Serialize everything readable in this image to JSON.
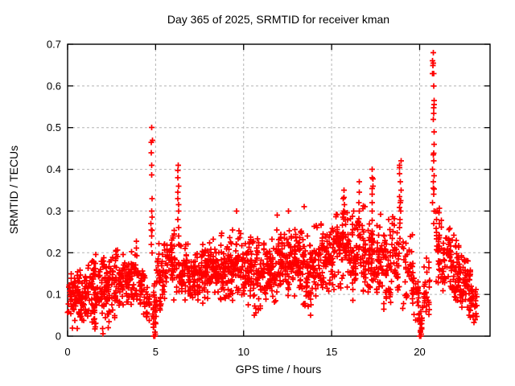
{
  "chart_data": {
    "type": "scatter",
    "title": "Day 365 of 2025, SRMTID for receiver kman",
    "xlabel": "GPS time / hours",
    "ylabel": "SRMTID / TECUs",
    "xlim": [
      0,
      24
    ],
    "ylim": [
      0,
      0.7
    ],
    "xticks": [
      0,
      5,
      10,
      15,
      20
    ],
    "xtick_labels": [
      "0",
      "5",
      "10",
      "15",
      "20"
    ],
    "yticks": [
      0,
      0.1,
      0.2,
      0.3,
      0.4,
      0.5,
      0.6,
      0.7
    ],
    "ytick_labels": [
      "0",
      "0.1",
      "0.2",
      "0.3",
      "0.4",
      "0.5",
      "0.6",
      "0.7"
    ],
    "grid": true,
    "legend": "none",
    "marker": {
      "shape": "plus",
      "color": "#ff0000",
      "size": 7,
      "stroke_width": 1.7
    },
    "colors": {
      "background": "#ffffff",
      "axis": "#000000",
      "grid": "#b3b3b3",
      "text": "#000000",
      "series": "#ff0000"
    },
    "series_name": "SRMTID",
    "bands_comment": "dense scatter approximated as bands: [x_start_hr, x_end_hr, n_points, mean_TECU, half_spread_TECU]",
    "bands": [
      [
        0.0,
        0.5,
        42,
        0.095,
        0.055
      ],
      [
        0.5,
        1.0,
        42,
        0.09,
        0.055
      ],
      [
        1.0,
        1.5,
        42,
        0.1,
        0.06
      ],
      [
        1.5,
        2.0,
        42,
        0.1,
        0.065
      ],
      [
        2.0,
        2.5,
        42,
        0.115,
        0.06
      ],
      [
        2.5,
        3.0,
        42,
        0.125,
        0.06
      ],
      [
        3.0,
        3.5,
        42,
        0.13,
        0.055
      ],
      [
        3.5,
        4.0,
        42,
        0.135,
        0.055
      ],
      [
        4.0,
        4.4,
        28,
        0.115,
        0.05
      ],
      [
        4.4,
        4.7,
        14,
        0.09,
        0.045
      ],
      [
        4.85,
        5.05,
        16,
        0.07,
        0.05
      ],
      [
        5.05,
        5.5,
        34,
        0.15,
        0.07
      ],
      [
        5.5,
        6.0,
        36,
        0.17,
        0.07
      ],
      [
        6.0,
        6.2,
        12,
        0.17,
        0.06
      ],
      [
        6.3,
        6.5,
        14,
        0.16,
        0.05
      ],
      [
        6.5,
        7.0,
        40,
        0.16,
        0.055
      ],
      [
        7.0,
        7.5,
        40,
        0.155,
        0.055
      ],
      [
        7.5,
        8.0,
        40,
        0.16,
        0.055
      ],
      [
        8.0,
        8.5,
        40,
        0.16,
        0.055
      ],
      [
        8.5,
        9.0,
        40,
        0.155,
        0.06
      ],
      [
        9.0,
        9.5,
        40,
        0.17,
        0.06
      ],
      [
        9.5,
        10.0,
        40,
        0.175,
        0.06
      ],
      [
        10.0,
        10.5,
        40,
        0.16,
        0.06
      ],
      [
        10.5,
        11.0,
        40,
        0.145,
        0.065
      ],
      [
        11.0,
        11.5,
        40,
        0.15,
        0.065
      ],
      [
        11.5,
        12.0,
        40,
        0.165,
        0.07
      ],
      [
        12.0,
        12.5,
        40,
        0.175,
        0.07
      ],
      [
        12.5,
        13.0,
        40,
        0.18,
        0.07
      ],
      [
        13.0,
        13.5,
        40,
        0.17,
        0.07
      ],
      [
        13.5,
        14.0,
        40,
        0.165,
        0.07
      ],
      [
        14.0,
        14.5,
        40,
        0.18,
        0.07
      ],
      [
        14.5,
        15.0,
        40,
        0.185,
        0.07
      ],
      [
        15.0,
        15.5,
        40,
        0.2,
        0.075
      ],
      [
        15.5,
        16.0,
        40,
        0.21,
        0.08
      ],
      [
        16.0,
        16.5,
        40,
        0.2,
        0.08
      ],
      [
        16.5,
        17.0,
        40,
        0.21,
        0.08
      ],
      [
        17.0,
        17.5,
        40,
        0.2,
        0.085
      ],
      [
        17.5,
        18.0,
        40,
        0.19,
        0.085
      ],
      [
        18.0,
        18.5,
        38,
        0.18,
        0.09
      ],
      [
        18.5,
        18.85,
        24,
        0.17,
        0.08
      ],
      [
        19.0,
        19.6,
        30,
        0.15,
        0.075
      ],
      [
        19.6,
        19.95,
        20,
        0.1,
        0.055
      ],
      [
        19.95,
        20.2,
        14,
        0.06,
        0.045
      ],
      [
        20.2,
        20.6,
        22,
        0.13,
        0.065
      ],
      [
        20.9,
        21.3,
        30,
        0.22,
        0.07
      ],
      [
        21.3,
        21.8,
        40,
        0.19,
        0.065
      ],
      [
        21.8,
        22.3,
        40,
        0.16,
        0.06
      ],
      [
        22.3,
        22.8,
        38,
        0.125,
        0.055
      ],
      [
        22.8,
        23.05,
        22,
        0.095,
        0.045
      ],
      [
        23.05,
        23.25,
        14,
        0.07,
        0.035
      ]
    ],
    "spikes_comment": "vertical spike columns: x_hr, x_jitter_hr, TECU values",
    "spikes": [
      {
        "x": 4.78,
        "jitter": 0.1,
        "values": [
          0.2,
          0.22,
          0.24,
          0.255,
          0.27,
          0.285,
          0.3,
          0.33,
          0.41,
          0.465,
          0.47,
          0.5
        ]
      },
      {
        "x": 6.28,
        "jitter": 0.08,
        "values": [
          0.22,
          0.24,
          0.26,
          0.28,
          0.3,
          0.315,
          0.33,
          0.345,
          0.36,
          0.38,
          0.41
        ]
      },
      {
        "x": 15.7,
        "jitter": 0.08,
        "values": [
          0.3,
          0.315,
          0.33,
          0.35
        ]
      },
      {
        "x": 16.55,
        "jitter": 0.06,
        "values": [
          0.3,
          0.32,
          0.345,
          0.37
        ]
      },
      {
        "x": 17.32,
        "jitter": 0.06,
        "values": [
          0.3,
          0.32,
          0.34,
          0.36,
          0.38,
          0.4
        ]
      },
      {
        "x": 18.9,
        "jitter": 0.12,
        "values": [
          0.26,
          0.28,
          0.3,
          0.32,
          0.335,
          0.35,
          0.37,
          0.39,
          0.41,
          0.42
        ]
      },
      {
        "x": 20.78,
        "jitter": 0.1,
        "values": [
          0.3,
          0.32,
          0.34,
          0.355,
          0.37,
          0.385,
          0.4,
          0.42,
          0.435,
          0.46,
          0.49,
          0.52,
          0.555,
          0.565,
          0.6,
          0.63,
          0.655,
          0.66,
          0.68
        ]
      }
    ],
    "extra_points_comment": "notable isolated points read off the plot, [x_hr, TECU]",
    "extra_points": [
      [
        1.55,
        0.03
      ],
      [
        2.3,
        0.02
      ],
      [
        2.35,
        0.035
      ],
      [
        4.9,
        0.0
      ],
      [
        4.93,
        0.0
      ],
      [
        4.96,
        0.0
      ],
      [
        4.99,
        0.005
      ],
      [
        4.95,
        0.01
      ],
      [
        5.0,
        0.03
      ],
      [
        9.6,
        0.3
      ],
      [
        10.6,
        0.05
      ],
      [
        11.9,
        0.29
      ],
      [
        12.55,
        0.3
      ],
      [
        13.45,
        0.31
      ],
      [
        13.8,
        0.05
      ],
      [
        19.98,
        0.04
      ],
      [
        20.0,
        0.0
      ],
      [
        20.03,
        0.0
      ],
      [
        20.06,
        0.0
      ],
      [
        20.09,
        0.005
      ],
      [
        20.05,
        0.01
      ],
      [
        20.12,
        0.02
      ],
      [
        20.95,
        0.28
      ],
      [
        21.0,
        0.3
      ],
      [
        23.15,
        0.04
      ]
    ]
  }
}
